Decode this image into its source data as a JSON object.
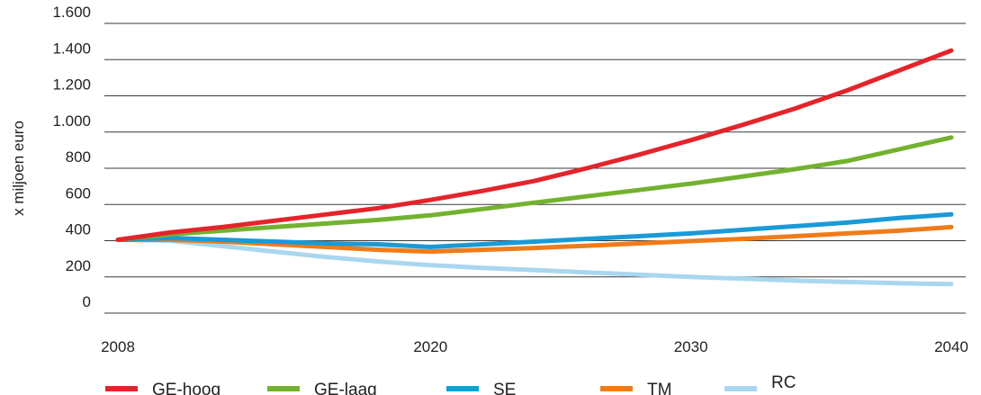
{
  "chart_data": {
    "type": "line",
    "title": "",
    "xlabel": "",
    "ylabel": "x miljoen euro",
    "xlim": [
      2008,
      2040
    ],
    "ylim": [
      0,
      1600
    ],
    "x_ticks": [
      2008,
      2020,
      2030,
      2040
    ],
    "x_tick_labels": [
      "2008",
      "2020",
      "2030",
      "2040"
    ],
    "y_ticks": [
      0,
      200,
      400,
      600,
      800,
      1000,
      1200,
      1400,
      1600
    ],
    "y_tick_labels": [
      "0",
      "200",
      "400",
      "600",
      "800",
      "1.000",
      "1.200",
      "1.400",
      "1.600"
    ],
    "grid": "horizontal",
    "legend_position": "bottom",
    "series": [
      {
        "name": "GE-hoog",
        "color": "#e4242b",
        "points": [
          [
            2008,
            405
          ],
          [
            2010,
            445
          ],
          [
            2012,
            475
          ],
          [
            2014,
            510
          ],
          [
            2016,
            545
          ],
          [
            2018,
            580
          ],
          [
            2020,
            625
          ],
          [
            2022,
            675
          ],
          [
            2024,
            730
          ],
          [
            2026,
            800
          ],
          [
            2028,
            875
          ],
          [
            2030,
            955
          ],
          [
            2032,
            1040
          ],
          [
            2034,
            1130
          ],
          [
            2036,
            1230
          ],
          [
            2038,
            1340
          ],
          [
            2040,
            1450
          ]
        ]
      },
      {
        "name": "GE-laag",
        "color": "#73b22f",
        "points": [
          [
            2008,
            405
          ],
          [
            2010,
            435
          ],
          [
            2012,
            455
          ],
          [
            2014,
            475
          ],
          [
            2016,
            495
          ],
          [
            2018,
            515
          ],
          [
            2020,
            540
          ],
          [
            2022,
            575
          ],
          [
            2024,
            610
          ],
          [
            2026,
            645
          ],
          [
            2028,
            680
          ],
          [
            2030,
            715
          ],
          [
            2032,
            755
          ],
          [
            2034,
            795
          ],
          [
            2036,
            840
          ],
          [
            2038,
            905
          ],
          [
            2040,
            970
          ]
        ]
      },
      {
        "name": "SE",
        "color": "#1a9ad6",
        "points": [
          [
            2008,
            405
          ],
          [
            2010,
            415
          ],
          [
            2012,
            405
          ],
          [
            2014,
            395
          ],
          [
            2016,
            385
          ],
          [
            2018,
            380
          ],
          [
            2020,
            365
          ],
          [
            2022,
            380
          ],
          [
            2024,
            395
          ],
          [
            2026,
            410
          ],
          [
            2028,
            425
          ],
          [
            2030,
            440
          ],
          [
            2032,
            460
          ],
          [
            2034,
            480
          ],
          [
            2036,
            500
          ],
          [
            2038,
            525
          ],
          [
            2040,
            545
          ]
        ]
      },
      {
        "name": "TM",
        "color": "#ef7c1a",
        "points": [
          [
            2008,
            405
          ],
          [
            2010,
            405
          ],
          [
            2012,
            395
          ],
          [
            2014,
            380
          ],
          [
            2016,
            365
          ],
          [
            2018,
            350
          ],
          [
            2020,
            340
          ],
          [
            2022,
            350
          ],
          [
            2024,
            360
          ],
          [
            2026,
            372
          ],
          [
            2028,
            385
          ],
          [
            2030,
            398
          ],
          [
            2032,
            410
          ],
          [
            2034,
            425
          ],
          [
            2036,
            440
          ],
          [
            2038,
            455
          ],
          [
            2040,
            475
          ]
        ]
      },
      {
        "name": "RC",
        "color": "#a9d7f0",
        "points": [
          [
            2008,
            405
          ],
          [
            2010,
            400
          ],
          [
            2012,
            370
          ],
          [
            2014,
            340
          ],
          [
            2016,
            310
          ],
          [
            2018,
            285
          ],
          [
            2020,
            265
          ],
          [
            2022,
            250
          ],
          [
            2024,
            238
          ],
          [
            2026,
            225
          ],
          [
            2028,
            212
          ],
          [
            2030,
            200
          ],
          [
            2032,
            190
          ],
          [
            2034,
            180
          ],
          [
            2036,
            172
          ],
          [
            2038,
            165
          ],
          [
            2040,
            160
          ]
        ]
      }
    ]
  }
}
